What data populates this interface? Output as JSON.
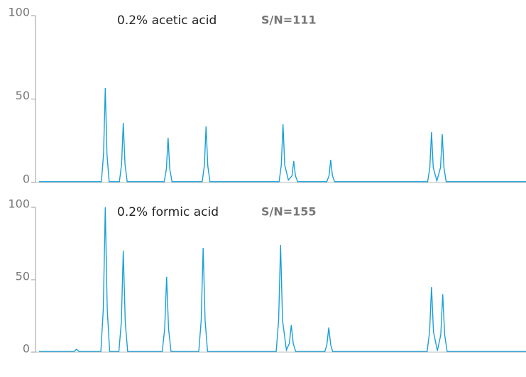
{
  "chart_data": [
    {
      "type": "line",
      "annotations": [
        "0.2% acetic acid",
        "S/N=111"
      ],
      "ylim": [
        0,
        100
      ],
      "yticks": [
        0,
        50,
        100
      ],
      "xlim": [
        0,
        100
      ],
      "series": [
        {
          "color": "#1aa0d8",
          "x": [
            0,
            12.8,
            13.25,
            13.6,
            13.95,
            14.4,
            16.5,
            16.95,
            17.3,
            17.65,
            18.1,
            25.7,
            26.15,
            26.5,
            26.85,
            27.3,
            33.5,
            33.95,
            34.3,
            34.65,
            35.1,
            49.3,
            49.75,
            50.1,
            50.45,
            51.2,
            51.95,
            52.3,
            52.65,
            53.1,
            59.1,
            59.55,
            59.9,
            60.25,
            60.7,
            79.8,
            80.25,
            80.6,
            80.95,
            81.7,
            82.45,
            82.8,
            83.15,
            83.6,
            100
          ],
          "values": [
            0.5,
            0.5,
            17,
            56.6,
            17,
            0.5,
            0.5,
            11,
            35.7,
            11,
            0.5,
            0.5,
            8,
            26.8,
            8,
            0.5,
            0.5,
            10,
            33.6,
            10,
            0.5,
            0.5,
            10.5,
            34.9,
            10.5,
            1.5,
            4,
            12.8,
            4,
            0.5,
            0.5,
            4,
            13.6,
            4,
            0.5,
            0.5,
            9,
            30.2,
            9,
            1,
            9,
            28.9,
            9,
            0.5,
            0.5
          ]
        }
      ]
    },
    {
      "type": "line",
      "annotations": [
        "0.2% formic acid",
        "S/N=155"
      ],
      "ylim": [
        0,
        100
      ],
      "yticks": [
        0,
        50,
        100
      ],
      "xlim": [
        0,
        100
      ],
      "series": [
        {
          "color": "#1aa0d8",
          "x": [
            0,
            7.2,
            7.7,
            8.2,
            12.7,
            13.2,
            13.6,
            14.0,
            14.5,
            16.4,
            16.9,
            17.3,
            17.7,
            18.2,
            25.3,
            25.8,
            26.2,
            26.6,
            27.1,
            32.8,
            33.3,
            33.7,
            34.1,
            34.6,
            48.7,
            49.2,
            49.6,
            50.0,
            50.8,
            51.4,
            51.8,
            52.2,
            52.7,
            58.7,
            59.1,
            59.5,
            59.9,
            60.3,
            79.7,
            80.2,
            80.6,
            81.0,
            81.8,
            82.5,
            82.9,
            83.3,
            83.8,
            100
          ],
          "values": [
            0.5,
            0.5,
            2,
            0.5,
            0.5,
            30,
            100,
            30,
            0.5,
            0.5,
            21,
            70,
            21,
            0.5,
            0.5,
            16,
            52,
            16,
            0.5,
            0.5,
            22,
            72,
            22,
            0.5,
            0.5,
            22,
            74,
            22,
            1.5,
            6,
            18.6,
            6,
            0.5,
            0.5,
            5,
            17,
            5,
            0.5,
            0.5,
            14,
            45,
            14,
            1,
            12,
            40,
            12,
            0.5,
            0.5
          ]
        }
      ]
    }
  ]
}
